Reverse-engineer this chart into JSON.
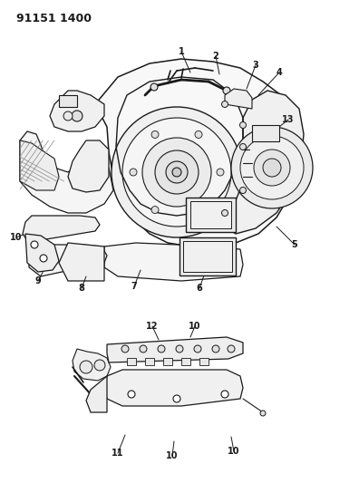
{
  "title": "91151 1400",
  "bg_color": "#ffffff",
  "line_color": "#1a1a1a",
  "fig_width": 3.96,
  "fig_height": 5.33,
  "dpi": 100
}
